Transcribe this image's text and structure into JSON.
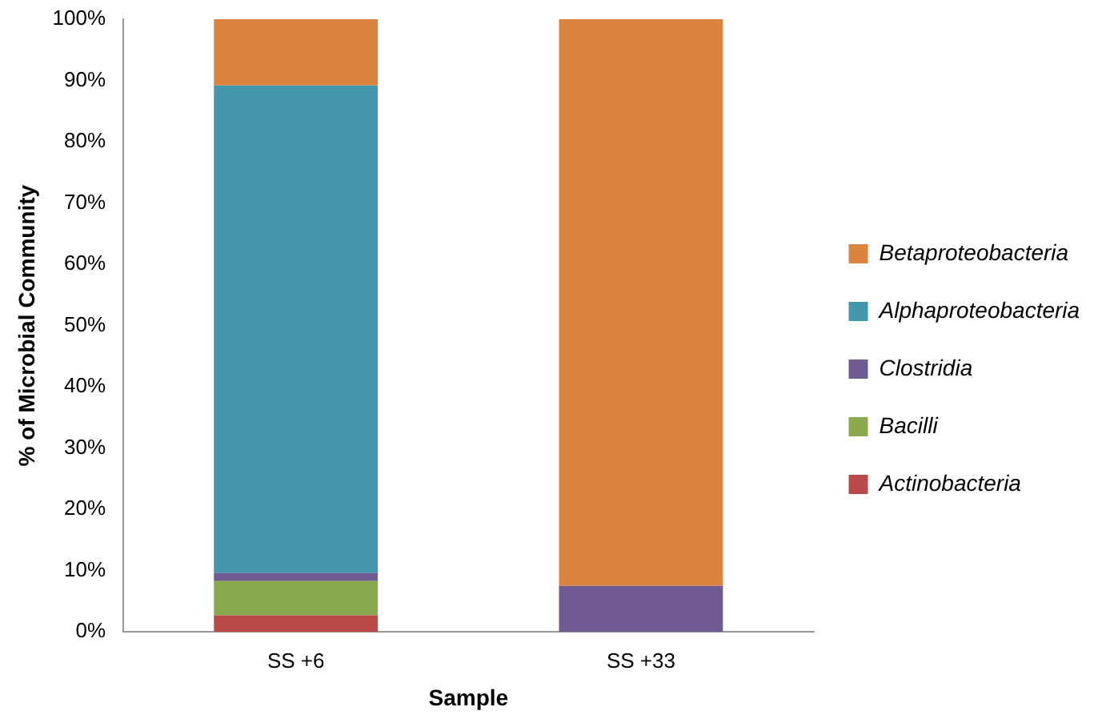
{
  "chart_data": {
    "type": "bar",
    "stacked": true,
    "xlabel": "Sample",
    "ylabel": "% of Microbial Community",
    "categories": [
      "SS +6",
      "SS +33"
    ],
    "series": [
      {
        "name": "Actinobacteria",
        "color": "#b94a48",
        "values": [
          2.7,
          0
        ]
      },
      {
        "name": "Bacilli",
        "color": "#8aa84c",
        "values": [
          5.6,
          0
        ]
      },
      {
        "name": "Clostridia",
        "color": "#6f5a92",
        "values": [
          1.3,
          7.5
        ]
      },
      {
        "name": "Alphaproteobacteria",
        "color": "#4396ab",
        "values": [
          79.6,
          0
        ]
      },
      {
        "name": "Betaproteobacteria",
        "color": "#db843d",
        "values": [
          10.8,
          92.5
        ]
      }
    ],
    "ylim": [
      0,
      100
    ],
    "yticks": [
      {
        "value": 0,
        "label": "0%"
      },
      {
        "value": 10,
        "label": "10%"
      },
      {
        "value": 20,
        "label": "20%"
      },
      {
        "value": 30,
        "label": "30%"
      },
      {
        "value": 40,
        "label": "40%"
      },
      {
        "value": 50,
        "label": "50%"
      },
      {
        "value": 60,
        "label": "60%"
      },
      {
        "value": 70,
        "label": "70%"
      },
      {
        "value": 80,
        "label": "80%"
      },
      {
        "value": 90,
        "label": "90%"
      },
      {
        "value": 100,
        "label": "100%"
      }
    ],
    "grid": false,
    "legend": "right"
  }
}
